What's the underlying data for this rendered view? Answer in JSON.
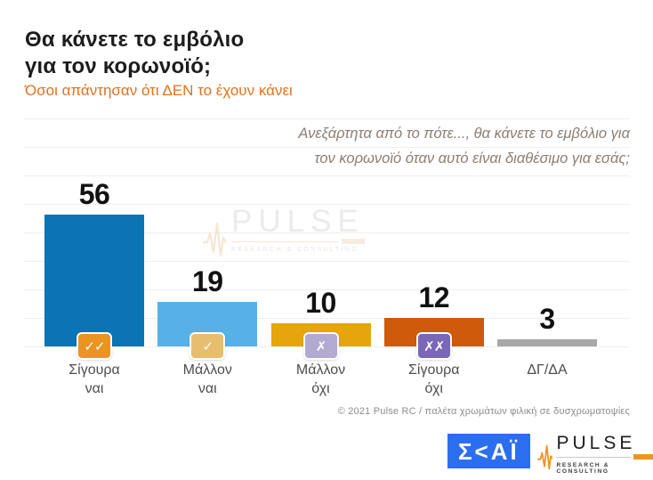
{
  "header": {
    "title_line1": "Θα κάνετε το εμβόλιο",
    "title_line2": "για τον κορωνοϊό;",
    "subtitle": "Όσοι απάντησαν ότι ΔΕΝ το έχουν κάνει"
  },
  "question": {
    "line1": "Ανεξάρτητα από το πότε..., θα κάνετε το εμβόλιο για",
    "line2": "τον κορωνοϊό όταν αυτό είναι διαθέσιμο για εσάς;"
  },
  "chart_data": {
    "type": "bar",
    "title": "Θα κάνετε το εμβόλιο για τον κορωνοϊό; (Όσοι απάντησαν ότι ΔΕΝ το έχουν κάνει)",
    "categories": [
      "Σίγουρα ναι",
      "Μάλλον ναι",
      "Μάλλον όχι",
      "Σίγουρα όχι",
      "ΔΓ/ΔΑ"
    ],
    "categories_display": [
      "Σίγουρα\nναι",
      "Μάλλον\nναι",
      "Μάλλον\nόχι",
      "Σίγουρα\nόχι",
      "ΔΓ/ΔΑ"
    ],
    "values": [
      56,
      19,
      10,
      12,
      3
    ],
    "unit": "percent",
    "ylim": [
      0,
      80
    ],
    "grid": true,
    "legend": "none",
    "bar_colors": [
      "#0b74b4",
      "#57b1e6",
      "#e6a50a",
      "#cf5a0c",
      "#a8a8a8"
    ],
    "badges": [
      {
        "name": "double-check-icon",
        "symbol": "✓✓",
        "color": "#ea9523"
      },
      {
        "name": "single-check-icon",
        "symbol": "✓",
        "color": "#e7bd70"
      },
      {
        "name": "single-x-icon",
        "symbol": "✗",
        "color": "#b2aad0"
      },
      {
        "name": "double-x-icon",
        "symbol": "✗✗",
        "color": "#7a67b7"
      },
      null
    ]
  },
  "watermark": {
    "brand": "PULSE",
    "tagline": "RESEARCH & CONSULTING"
  },
  "footer": {
    "copyright": "© 2021 Pulse RC   /   παλέτα χρωμάτων φιλική σε δυσχρωματοψίες"
  },
  "logos": {
    "skai_text": "Σ<ΑΪ",
    "pulse_brand": "PULSE",
    "pulse_tagline": "RESEARCH & CONSULTING"
  },
  "colors": {
    "accent_orange": "#e2711d",
    "gridline": "#efefef",
    "skai_blue": "#2b6ef0",
    "pulse_orange": "#f0941e"
  }
}
